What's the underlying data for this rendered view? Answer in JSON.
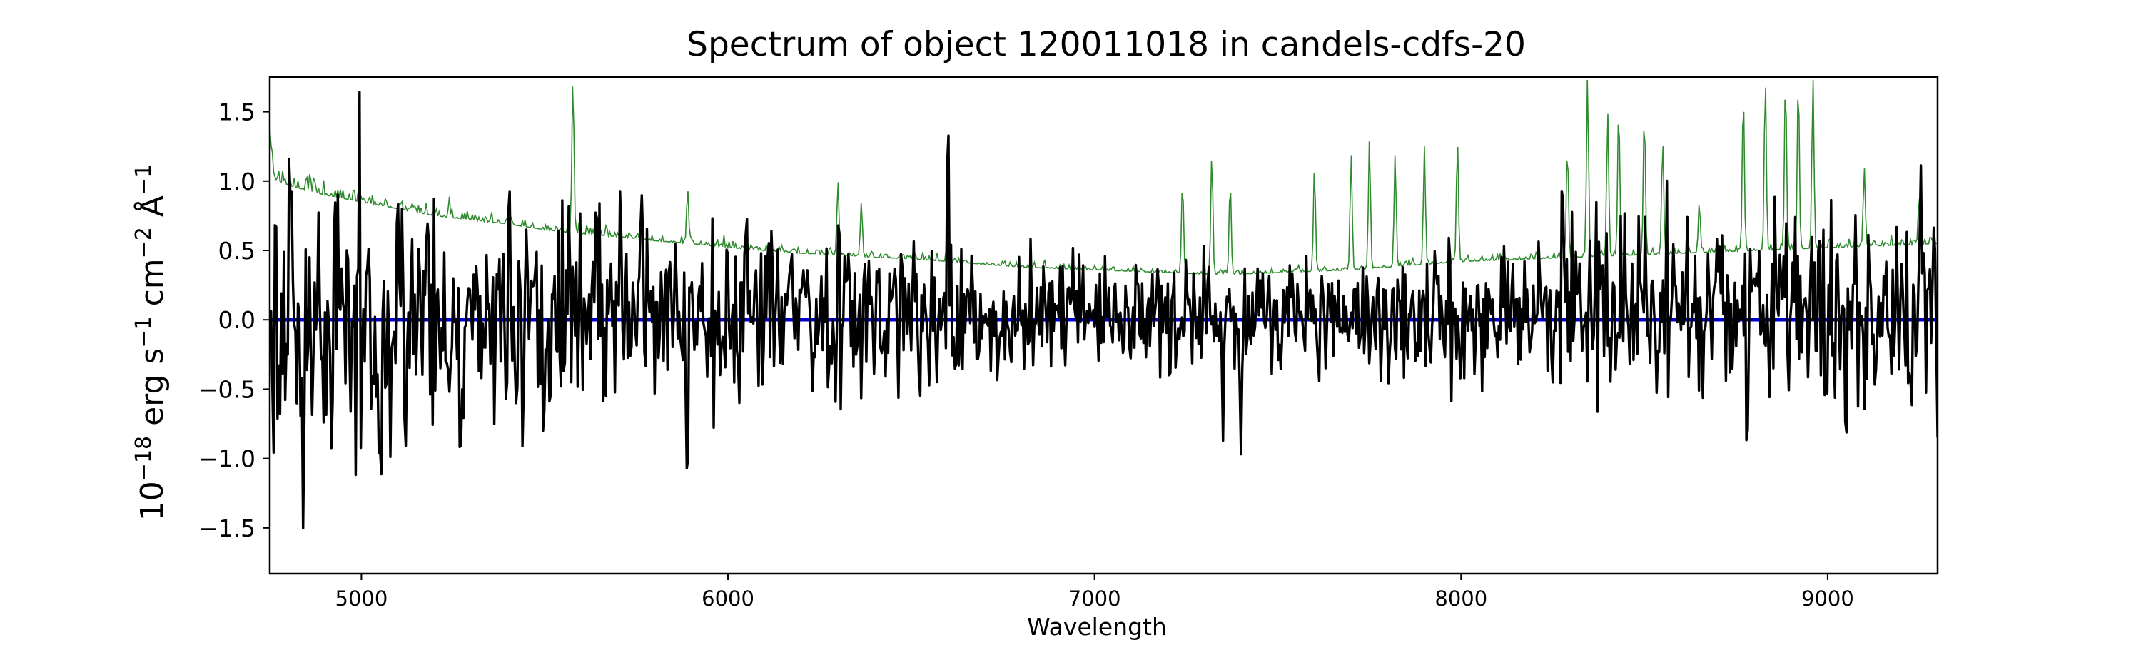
{
  "chart_data": {
    "type": "line",
    "title": "Spectrum of object 120011018 in candels-cdfs-20",
    "xlabel": "Wavelength",
    "ylabel_base": "10",
    "ylabel_exp": "−18",
    "ylabel_units": [
      {
        "t": " erg s",
        "sup": "−1"
      },
      {
        "t": " cm",
        "sup": "−2"
      },
      {
        "t": " Å",
        "sup": "−1"
      }
    ],
    "xlim": [
      4750,
      9300
    ],
    "ylim": [
      -1.83,
      1.75
    ],
    "x_ticks": [
      5000,
      6000,
      7000,
      8000,
      9000
    ],
    "x_tick_labels": [
      "5000",
      "6000",
      "7000",
      "8000",
      "9000"
    ],
    "y_ticks": [
      1.5,
      1.0,
      0.5,
      0.0,
      -0.5,
      -1.0,
      -1.5
    ],
    "y_tick_labels": [
      "1.5",
      "1.0",
      "0.5",
      "0.0",
      "−0.5",
      "−1.0",
      "−1.5"
    ],
    "grid": false,
    "series": [
      {
        "role": "error",
        "color": "#2e8b2e",
        "anchors": [
          [
            4750,
            1.32
          ],
          [
            4760,
            1.02
          ],
          [
            4800,
            0.97
          ],
          [
            4900,
            0.9
          ],
          [
            5000,
            0.85
          ],
          [
            5100,
            0.8
          ],
          [
            5200,
            0.75
          ],
          [
            5300,
            0.72
          ],
          [
            5400,
            0.69
          ],
          [
            5500,
            0.65
          ],
          [
            5600,
            0.62
          ],
          [
            5700,
            0.6
          ],
          [
            5800,
            0.57
          ],
          [
            5900,
            0.55
          ],
          [
            6000,
            0.52
          ],
          [
            6100,
            0.5
          ],
          [
            6200,
            0.48
          ],
          [
            6300,
            0.47
          ],
          [
            6400,
            0.45
          ],
          [
            6500,
            0.44
          ],
          [
            6600,
            0.42
          ],
          [
            6700,
            0.4
          ],
          [
            6800,
            0.38
          ],
          [
            6900,
            0.37
          ],
          [
            7000,
            0.36
          ],
          [
            7100,
            0.35
          ],
          [
            7200,
            0.34
          ],
          [
            7300,
            0.33
          ],
          [
            7400,
            0.33
          ],
          [
            7500,
            0.34
          ],
          [
            7600,
            0.35
          ],
          [
            7700,
            0.36
          ],
          [
            7800,
            0.38
          ],
          [
            7900,
            0.4
          ],
          [
            8000,
            0.42
          ],
          [
            8100,
            0.43
          ],
          [
            8200,
            0.44
          ],
          [
            8300,
            0.45
          ],
          [
            8400,
            0.46
          ],
          [
            8500,
            0.47
          ],
          [
            8600,
            0.48
          ],
          [
            8700,
            0.49
          ],
          [
            8800,
            0.5
          ],
          [
            8900,
            0.51
          ],
          [
            9000,
            0.52
          ],
          [
            9100,
            0.53
          ],
          [
            9200,
            0.54
          ],
          [
            9300,
            0.55
          ]
        ],
        "features": [
          [
            5577,
            1.75
          ],
          [
            5890,
            0.95
          ],
          [
            6300,
            1.0
          ],
          [
            6364,
            0.85
          ],
          [
            6600,
            0.9
          ],
          [
            7240,
            1.0
          ],
          [
            7320,
            1.2
          ],
          [
            7370,
            1.0
          ],
          [
            7600,
            1.1
          ],
          [
            7700,
            1.2
          ],
          [
            7750,
            1.3
          ],
          [
            7820,
            1.2
          ],
          [
            7900,
            1.25
          ],
          [
            7990,
            1.3
          ],
          [
            8290,
            1.25
          ],
          [
            8345,
            1.75
          ],
          [
            8400,
            1.5
          ],
          [
            8430,
            1.55
          ],
          [
            8500,
            1.5
          ],
          [
            8550,
            1.3
          ],
          [
            8650,
            0.85
          ],
          [
            8770,
            1.65
          ],
          [
            8830,
            1.75
          ],
          [
            8885,
            1.75
          ],
          [
            8920,
            1.75
          ],
          [
            8960,
            1.75
          ],
          [
            9100,
            1.1
          ],
          [
            9250,
            0.9
          ]
        ]
      },
      {
        "role": "flux",
        "color": "#000000",
        "bright_points": [
          [
            4810,
            0.95
          ],
          [
            4842,
            -1.65
          ],
          [
            4920,
            -1.22
          ],
          [
            4960,
            0.5
          ],
          [
            5050,
            -1.1
          ],
          [
            5120,
            -1.0
          ],
          [
            5450,
            0.65
          ],
          [
            5500,
            -0.8
          ],
          [
            5705,
            0.95
          ],
          [
            5760,
            0.8
          ],
          [
            5890,
            -1.12
          ],
          [
            6050,
            0.85
          ],
          [
            6295,
            -0.82
          ],
          [
            6300,
            0.7
          ],
          [
            6600,
            1.58
          ],
          [
            7350,
            -0.9
          ],
          [
            7400,
            -1.0
          ],
          [
            8276,
            1.22
          ],
          [
            8780,
            -1.15
          ],
          [
            9050,
            -0.9
          ],
          [
            9260,
            0.45
          ],
          [
            9300,
            -0.85
          ]
        ]
      },
      {
        "role": "zero",
        "color": "#0000cc",
        "y": 0.0
      }
    ]
  }
}
